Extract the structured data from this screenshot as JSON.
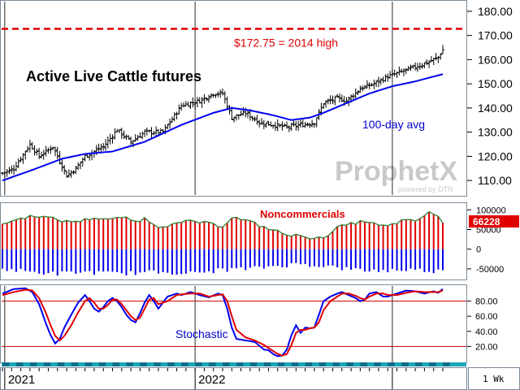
{
  "chart_data": {
    "title": "Active Live Cattle futures",
    "watermark": {
      "brand": "ProphetX",
      "sub": "powered by DTN"
    },
    "price_panel": {
      "type": "ohlc",
      "ylim": [
        104,
        184
      ],
      "ticks": [
        "180.00",
        "170.00",
        "160.00",
        "150.00",
        "140.00",
        "130.00",
        "120.00",
        "110.00"
      ],
      "tick_values": [
        180,
        170,
        160,
        150,
        140,
        130,
        120,
        110
      ],
      "reference_line": {
        "value": 172.75,
        "label": "$172.75 = 2014 high",
        "color": "#e00000"
      },
      "ma_label": "100-day avg",
      "ma_color": "#0000ee",
      "close_anchors": [
        [
          0,
          113
        ],
        [
          5,
          115
        ],
        [
          12,
          125
        ],
        [
          16,
          120
        ],
        [
          22,
          124
        ],
        [
          28,
          112
        ],
        [
          32,
          115
        ],
        [
          36,
          120
        ],
        [
          44,
          124
        ],
        [
          50,
          131
        ],
        [
          56,
          126
        ],
        [
          62,
          130
        ],
        [
          70,
          130
        ],
        [
          78,
          141
        ],
        [
          86,
          143
        ],
        [
          92,
          146
        ],
        [
          96,
          146
        ],
        [
          100,
          136
        ],
        [
          106,
          138
        ],
        [
          112,
          134
        ],
        [
          118,
          133
        ],
        [
          124,
          132
        ],
        [
          130,
          133
        ],
        [
          136,
          134
        ],
        [
          140,
          142
        ],
        [
          146,
          144
        ],
        [
          150,
          143
        ],
        [
          156,
          148
        ],
        [
          162,
          150
        ],
        [
          168,
          153
        ],
        [
          174,
          155
        ],
        [
          180,
          157
        ],
        [
          186,
          159
        ],
        [
          190,
          161
        ],
        [
          192,
          164
        ]
      ],
      "ma_anchors": [
        [
          0,
          110
        ],
        [
          12,
          114
        ],
        [
          26,
          119
        ],
        [
          36,
          121
        ],
        [
          48,
          122
        ],
        [
          62,
          126
        ],
        [
          78,
          133
        ],
        [
          92,
          138
        ],
        [
          100,
          140
        ],
        [
          108,
          139
        ],
        [
          118,
          137
        ],
        [
          126,
          135
        ],
        [
          134,
          136
        ],
        [
          140,
          138
        ],
        [
          150,
          142
        ],
        [
          160,
          146
        ],
        [
          170,
          149
        ],
        [
          180,
          151
        ],
        [
          188,
          153
        ],
        [
          192,
          154
        ]
      ]
    },
    "cot_panel": {
      "type": "bar",
      "label": "Noncommercials",
      "last_value": "66228",
      "ticks": [
        "100000",
        "50000",
        "0",
        "-50000"
      ],
      "tick_values": [
        100000,
        50000,
        0,
        -50000
      ],
      "ylim": [
        -75000,
        115000
      ],
      "long_color": "#e00000",
      "short_color": "#0000ee",
      "line_color": "#2e7d32",
      "net_anchors": [
        [
          0,
          65000
        ],
        [
          8,
          78000
        ],
        [
          14,
          86000
        ],
        [
          20,
          80000
        ],
        [
          28,
          70000
        ],
        [
          34,
          72000
        ],
        [
          40,
          80000
        ],
        [
          48,
          75000
        ],
        [
          52,
          82000
        ],
        [
          58,
          70000
        ],
        [
          62,
          78000
        ],
        [
          68,
          58000
        ],
        [
          76,
          64000
        ],
        [
          82,
          72000
        ],
        [
          90,
          65000
        ],
        [
          96,
          58000
        ],
        [
          100,
          82000
        ],
        [
          108,
          70000
        ],
        [
          112,
          60000
        ],
        [
          120,
          45000
        ],
        [
          126,
          32000
        ],
        [
          130,
          38000
        ],
        [
          136,
          25000
        ],
        [
          140,
          30000
        ],
        [
          146,
          55000
        ],
        [
          152,
          64000
        ],
        [
          158,
          72000
        ],
        [
          164,
          60000
        ],
        [
          168,
          58000
        ],
        [
          174,
          72000
        ],
        [
          180,
          72000
        ],
        [
          186,
          92000
        ],
        [
          190,
          86000
        ],
        [
          192,
          66228
        ]
      ],
      "short_anchors": [
        [
          0,
          -50000
        ],
        [
          12,
          -58000
        ],
        [
          24,
          -62000
        ],
        [
          36,
          -58000
        ],
        [
          48,
          -62000
        ],
        [
          60,
          -60000
        ],
        [
          72,
          -58000
        ],
        [
          84,
          -62000
        ],
        [
          96,
          -52000
        ],
        [
          108,
          -50000
        ],
        [
          120,
          -42000
        ],
        [
          130,
          -38000
        ],
        [
          140,
          -42000
        ],
        [
          152,
          -52000
        ],
        [
          164,
          -55000
        ],
        [
          176,
          -52000
        ],
        [
          188,
          -55000
        ],
        [
          192,
          -56000
        ]
      ]
    },
    "stoch_panel": {
      "type": "line",
      "label": "Stochastic",
      "ticks": [
        "80.00",
        "60.00",
        "40.00",
        "20.00"
      ],
      "tick_values": [
        80,
        60,
        40,
        20
      ],
      "ylim": [
        0,
        100
      ],
      "reference_lines": [
        80,
        20
      ],
      "series": [
        {
          "color": "#0000ee",
          "values": [
            [
              0,
              90
            ],
            [
              5,
              96
            ],
            [
              10,
              97
            ],
            [
              13,
              92
            ],
            [
              16,
              76
            ],
            [
              19,
              50
            ],
            [
              21,
              35
            ],
            [
              23,
              24
            ],
            [
              25,
              30
            ],
            [
              27,
              45
            ],
            [
              30,
              62
            ],
            [
              33,
              78
            ],
            [
              36,
              88
            ],
            [
              38,
              80
            ],
            [
              40,
              70
            ],
            [
              42,
              66
            ],
            [
              44,
              72
            ],
            [
              46,
              80
            ],
            [
              48,
              84
            ],
            [
              50,
              80
            ],
            [
              52,
              72
            ],
            [
              54,
              62
            ],
            [
              56,
              55
            ],
            [
              58,
              52
            ],
            [
              60,
              64
            ],
            [
              62,
              78
            ],
            [
              64,
              88
            ],
            [
              66,
              80
            ],
            [
              68,
              70
            ],
            [
              72,
              86
            ],
            [
              76,
              90
            ],
            [
              78,
              88
            ],
            [
              82,
              92
            ],
            [
              86,
              88
            ],
            [
              90,
              85
            ],
            [
              94,
              90
            ],
            [
              96,
              88
            ],
            [
              98,
              70
            ],
            [
              100,
              45
            ],
            [
              102,
              30
            ],
            [
              106,
              28
            ],
            [
              110,
              26
            ],
            [
              114,
              16
            ],
            [
              116,
              15
            ],
            [
              118,
              10
            ],
            [
              120,
              7
            ],
            [
              122,
              8
            ],
            [
              124,
              16
            ],
            [
              126,
              35
            ],
            [
              128,
              48
            ],
            [
              130,
              38
            ],
            [
              132,
              45
            ],
            [
              134,
              44
            ],
            [
              136,
              45
            ],
            [
              138,
              62
            ],
            [
              140,
              80
            ],
            [
              143,
              86
            ],
            [
              146,
              90
            ],
            [
              148,
              92
            ],
            [
              151,
              88
            ],
            [
              154,
              84
            ],
            [
              156,
              80
            ],
            [
              158,
              82
            ],
            [
              160,
              90
            ],
            [
              163,
              92
            ],
            [
              166,
              86
            ],
            [
              168,
              86
            ],
            [
              172,
              90
            ],
            [
              176,
              94
            ],
            [
              180,
              93
            ],
            [
              184,
              90
            ],
            [
              188,
              93
            ],
            [
              190,
              91
            ],
            [
              192,
              96
            ]
          ]
        },
        {
          "color": "#e00000",
          "values": [
            [
              0,
              88
            ],
            [
              5,
              92
            ],
            [
              10,
              95
            ],
            [
              13,
              94
            ],
            [
              16,
              84
            ],
            [
              19,
              64
            ],
            [
              21,
              48
            ],
            [
              23,
              34
            ],
            [
              25,
              28
            ],
            [
              27,
              34
            ],
            [
              30,
              48
            ],
            [
              33,
              65
            ],
            [
              36,
              80
            ],
            [
              38,
              84
            ],
            [
              40,
              78
            ],
            [
              42,
              70
            ],
            [
              44,
              70
            ],
            [
              46,
              75
            ],
            [
              48,
              82
            ],
            [
              50,
              82
            ],
            [
              52,
              76
            ],
            [
              54,
              68
            ],
            [
              56,
              60
            ],
            [
              58,
              55
            ],
            [
              60,
              58
            ],
            [
              62,
              70
            ],
            [
              64,
              82
            ],
            [
              66,
              84
            ],
            [
              68,
              76
            ],
            [
              72,
              80
            ],
            [
              76,
              88
            ],
            [
              78,
              89
            ],
            [
              82,
              90
            ],
            [
              86,
              90
            ],
            [
              90,
              86
            ],
            [
              94,
              88
            ],
            [
              96,
              89
            ],
            [
              98,
              80
            ],
            [
              100,
              60
            ],
            [
              102,
              42
            ],
            [
              106,
              32
            ],
            [
              110,
              28
            ],
            [
              114,
              22
            ],
            [
              116,
              18
            ],
            [
              118,
              14
            ],
            [
              120,
              10
            ],
            [
              122,
              8
            ],
            [
              124,
              10
            ],
            [
              126,
              22
            ],
            [
              128,
              38
            ],
            [
              130,
              42
            ],
            [
              132,
              42
            ],
            [
              134,
              44
            ],
            [
              136,
              45
            ],
            [
              138,
              52
            ],
            [
              140,
              68
            ],
            [
              143,
              80
            ],
            [
              146,
              86
            ],
            [
              148,
              90
            ],
            [
              151,
              90
            ],
            [
              154,
              87
            ],
            [
              156,
              84
            ],
            [
              158,
              82
            ],
            [
              160,
              86
            ],
            [
              163,
              90
            ],
            [
              166,
              90
            ],
            [
              168,
              88
            ],
            [
              172,
              88
            ],
            [
              176,
              91
            ],
            [
              180,
              93
            ],
            [
              184,
              92
            ],
            [
              188,
              92
            ],
            [
              190,
              92
            ],
            [
              192,
              94
            ]
          ]
        }
      ]
    },
    "x_axis": {
      "labels": [
        {
          "text": "2021",
          "index": 1
        },
        {
          "text": "2022",
          "index": 84
        }
      ],
      "vlines": [
        1,
        84,
        170
      ],
      "periodicity": "1 Wk",
      "n_bars": 193
    }
  }
}
